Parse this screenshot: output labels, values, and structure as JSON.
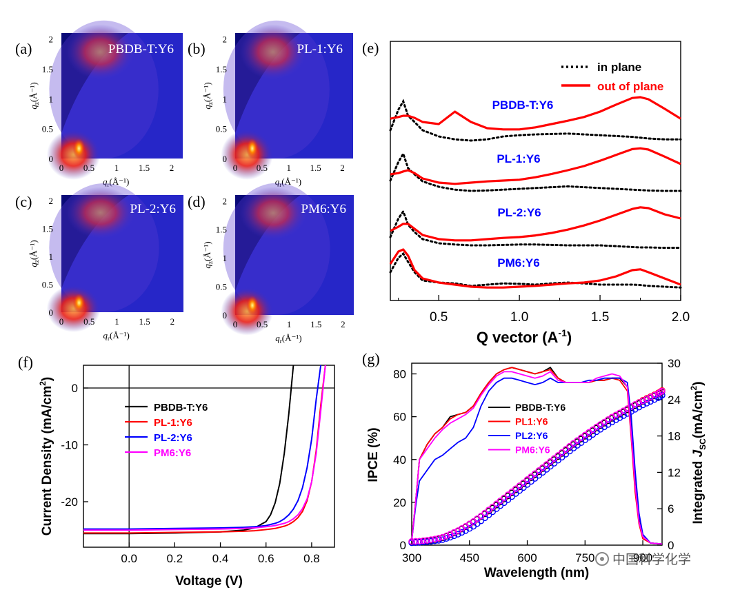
{
  "colors": {
    "pbdb": "#000000",
    "pl1": "#ff0000",
    "pl2": "#0000ff",
    "pm6": "#ff00ff",
    "red_line": "#ff0000",
    "label_blue": "#0000ff",
    "gi_bg": "#2626c8",
    "gi_shadow": "#0a0a78"
  },
  "watermark": "中国科学化学",
  "chart_data": [
    {
      "id": "a",
      "type": "heatmap",
      "panel_label": "(a)",
      "title": "PBDB-T:Y6",
      "xlabel_q": "q",
      "xlabel_sub": "r",
      "xlabel_unit": "(Å⁻¹)",
      "ylabel_q": "q",
      "ylabel_sub": "z",
      "ylabel_unit": "(Å⁻¹)",
      "xlim": [
        0,
        2.2
      ],
      "ylim": [
        0,
        2.1
      ],
      "xticks": [
        "0",
        "0.5",
        "1",
        "1.5",
        "2"
      ],
      "yticks": [
        "0",
        "0.5",
        "1",
        "1.5",
        "2"
      ]
    },
    {
      "id": "b",
      "type": "heatmap",
      "panel_label": "(b)",
      "title": "PL-1:Y6",
      "xlabel_q": "q",
      "xlabel_sub": "r",
      "xlabel_unit": "(Å⁻¹)",
      "ylabel_q": "q",
      "ylabel_sub": "z",
      "ylabel_unit": "(Å⁻¹)",
      "xlim": [
        0,
        2.2
      ],
      "ylim": [
        0,
        2.1
      ],
      "xticks": [
        "0",
        "0.5",
        "1",
        "1.5",
        "2"
      ],
      "yticks": [
        "0",
        "0.5",
        "1",
        "1.5",
        "2"
      ]
    },
    {
      "id": "c",
      "type": "heatmap",
      "panel_label": "(c)",
      "title": "PL-2:Y6",
      "xlabel_q": "q",
      "xlabel_sub": "r",
      "xlabel_unit": "(Å⁻¹)",
      "ylabel_q": "q",
      "ylabel_sub": "z",
      "ylabel_unit": "(Å⁻¹)",
      "xlim": [
        0,
        2.2
      ],
      "ylim": [
        0,
        2.1
      ],
      "xticks": [
        "0",
        "0.5",
        "1",
        "1.5",
        "2"
      ],
      "yticks": [
        "0",
        "0.5",
        "1",
        "1.5",
        "2"
      ]
    },
    {
      "id": "d",
      "type": "heatmap",
      "panel_label": "(d)",
      "title": "PM6:Y6",
      "xlabel_q": "q",
      "xlabel_sub": "r",
      "xlabel_unit": "(Å⁻¹)",
      "ylabel_q": "q",
      "ylabel_sub": "z",
      "ylabel_unit": "(Å⁻¹)",
      "xlim": [
        0,
        2.2
      ],
      "ylim": [
        0,
        2.1
      ],
      "xticks": [
        "0",
        "0.5",
        "1",
        "1.5",
        "2"
      ],
      "yticks": [
        "0",
        "0.5",
        "1",
        "1.5",
        "2"
      ]
    },
    {
      "id": "e",
      "type": "line",
      "panel_label": "(e)",
      "xlabel": "Q vector (A",
      "xlabel_sup": "-1",
      "xlabel_close": ")",
      "xlim": [
        0.2,
        2.0
      ],
      "xticks": [
        "0.5",
        "1.0",
        "1.5",
        "2.0"
      ],
      "xtick_values": [
        0.5,
        1.0,
        1.5,
        2.0
      ],
      "legend": [
        "in plane",
        "out of plane"
      ],
      "sample_labels": [
        "PBDB-T:Y6",
        "PL-1:Y6",
        "PL-2:Y6",
        "PM6:Y6"
      ],
      "x": [
        0.2,
        0.25,
        0.28,
        0.31,
        0.35,
        0.4,
        0.5,
        0.6,
        0.7,
        0.8,
        0.9,
        1.0,
        1.1,
        1.2,
        1.3,
        1.4,
        1.5,
        1.6,
        1.7,
        1.75,
        1.8,
        1.9,
        2.0
      ],
      "curves": [
        {
          "sample": "PBDB-T:Y6",
          "in_plane": [
            0.1,
            0.6,
            0.8,
            0.45,
            0.3,
            0.1,
            -0.05,
            -0.12,
            -0.15,
            -0.12,
            -0.05,
            -0.02,
            0.0,
            0.01,
            0.02,
            0.0,
            -0.02,
            -0.04,
            -0.06,
            -0.08,
            -0.1,
            -0.12,
            -0.12
          ],
          "out_of_plane": [
            0.38,
            0.42,
            0.45,
            0.45,
            0.4,
            0.3,
            0.25,
            0.55,
            0.3,
            0.15,
            0.12,
            0.12,
            0.17,
            0.25,
            0.33,
            0.42,
            0.55,
            0.72,
            0.88,
            0.9,
            0.85,
            0.62,
            0.38
          ]
        },
        {
          "sample": "PL-1:Y6",
          "in_plane": [
            0.1,
            0.55,
            0.75,
            0.4,
            0.25,
            0.08,
            -0.05,
            -0.12,
            -0.15,
            -0.14,
            -0.12,
            -0.1,
            -0.08,
            -0.06,
            -0.04,
            -0.06,
            -0.08,
            -0.1,
            -0.12,
            -0.13,
            -0.14,
            -0.15,
            -0.15
          ],
          "out_of_plane": [
            0.25,
            0.28,
            0.32,
            0.35,
            0.28,
            0.15,
            0.05,
            0.02,
            0.05,
            0.08,
            0.1,
            0.12,
            0.18,
            0.26,
            0.35,
            0.45,
            0.58,
            0.72,
            0.86,
            0.88,
            0.85,
            0.68,
            0.5
          ]
        },
        {
          "sample": "PL-2:Y6",
          "in_plane": [
            0.1,
            0.55,
            0.72,
            0.4,
            0.22,
            0.05,
            -0.05,
            -0.08,
            -0.1,
            -0.1,
            -0.09,
            -0.08,
            -0.08,
            -0.09,
            -0.1,
            -0.1,
            -0.1,
            -0.12,
            -0.14,
            -0.15,
            -0.15,
            -0.16,
            -0.16
          ],
          "out_of_plane": [
            0.25,
            0.35,
            0.42,
            0.42,
            0.3,
            0.15,
            0.05,
            0.02,
            0.02,
            0.05,
            0.08,
            0.1,
            0.14,
            0.2,
            0.28,
            0.38,
            0.5,
            0.64,
            0.78,
            0.82,
            0.8,
            0.65,
            0.55
          ]
        },
        {
          "sample": "PM6:Y6",
          "in_plane": [
            0.25,
            0.6,
            0.7,
            0.5,
            0.25,
            0.05,
            0.0,
            -0.02,
            -0.08,
            -0.05,
            -0.02,
            -0.03,
            -0.05,
            -0.02,
            0.0,
            -0.02,
            -0.05,
            -0.05,
            -0.05,
            -0.06,
            -0.08,
            -0.1,
            -0.12
          ],
          "out_of_plane": [
            0.45,
            0.75,
            0.8,
            0.65,
            0.3,
            0.1,
            0.0,
            -0.05,
            -0.1,
            -0.12,
            -0.12,
            -0.1,
            -0.08,
            -0.05,
            -0.02,
            0.0,
            0.05,
            0.15,
            0.3,
            0.32,
            0.25,
            0.1,
            -0.05
          ]
        }
      ]
    },
    {
      "id": "f",
      "type": "line",
      "panel_label": "(f)",
      "xlabel": "Voltage (V)",
      "ylabel": "Current Density (mA/cm",
      "ylabel_sup": "2",
      "ylabel_close": ")",
      "xlim": [
        -0.2,
        0.9
      ],
      "ylim": [
        -28,
        4
      ],
      "xticks": [
        "0.0",
        "0.2",
        "0.4",
        "0.6",
        "0.8"
      ],
      "xtick_values": [
        0.0,
        0.2,
        0.4,
        0.6,
        0.8
      ],
      "yticks": [
        "0",
        "-10",
        "-20"
      ],
      "ytick_values": [
        0,
        -10,
        -20
      ],
      "x": [
        -0.2,
        0.0,
        0.2,
        0.4,
        0.5,
        0.55,
        0.6,
        0.62,
        0.64,
        0.66,
        0.68,
        0.7,
        0.72,
        0.74,
        0.76,
        0.78,
        0.8,
        0.82,
        0.84,
        0.86,
        0.88
      ],
      "series": [
        {
          "name": "PBDB-T:Y6",
          "color": "#000000",
          "values": [
            -25.6,
            -25.6,
            -25.5,
            -25.3,
            -25.0,
            -24.6,
            -23.5,
            -22.3,
            -20.2,
            -16.8,
            -11.5,
            -4.5,
            4.5,
            null,
            null,
            null,
            null,
            null,
            null,
            null,
            null
          ]
        },
        {
          "name": "PL-1:Y6",
          "color": "#ff0000",
          "values": [
            -25.5,
            -25.5,
            -25.4,
            -25.3,
            -25.2,
            -25.1,
            -24.9,
            -24.8,
            -24.7,
            -24.5,
            -24.3,
            -24.0,
            -23.5,
            -22.8,
            -21.7,
            -19.8,
            -16.5,
            -11.0,
            -3.0,
            5.0,
            null
          ]
        },
        {
          "name": "PL-2:Y6",
          "color": "#0000ff",
          "values": [
            -24.8,
            -24.8,
            -24.7,
            -24.6,
            -24.5,
            -24.4,
            -24.2,
            -24.0,
            -23.8,
            -23.5,
            -23.0,
            -22.3,
            -21.3,
            -19.8,
            -17.5,
            -14.0,
            -9.0,
            -2.0,
            5.0,
            null,
            null
          ]
        },
        {
          "name": "PM6:Y6",
          "color": "#ff00ff",
          "values": [
            -25.0,
            -25.0,
            -24.9,
            -24.8,
            -24.7,
            -24.6,
            -24.4,
            -24.3,
            -24.2,
            -24.0,
            -23.8,
            -23.5,
            -23.0,
            -22.3,
            -21.2,
            -19.5,
            -16.5,
            -11.5,
            -4.0,
            5.0,
            null
          ]
        }
      ]
    },
    {
      "id": "g",
      "type": "line",
      "panel_label": "(g)",
      "xlabel": "Wavelength (nm)",
      "ylabel": "IPCE (%)",
      "ylabel2_prefix": "Integrated ",
      "ylabel2_j": "J",
      "ylabel2_sub": "SC",
      "ylabel2_unit": "(mA/cm",
      "ylabel2_sup": "2",
      "ylabel2_close": ")",
      "xlim": [
        300,
        950
      ],
      "ylim": [
        0,
        85
      ],
      "ylim_right": [
        0,
        30
      ],
      "xticks": [
        "300",
        "450",
        "600",
        "750",
        "900"
      ],
      "xtick_values": [
        300,
        450,
        600,
        750,
        900
      ],
      "yticks": [
        "0",
        "20",
        "40",
        "60",
        "80"
      ],
      "ytick_values": [
        0,
        20,
        40,
        60,
        80
      ],
      "yticks_right": [
        "0",
        "6",
        "12",
        "18",
        "24",
        "30"
      ],
      "ytick_values_right": [
        0,
        6,
        12,
        18,
        24,
        30
      ],
      "x": [
        300,
        310,
        320,
        340,
        360,
        380,
        400,
        420,
        440,
        460,
        480,
        500,
        520,
        540,
        560,
        580,
        600,
        620,
        640,
        660,
        680,
        700,
        720,
        740,
        760,
        780,
        800,
        820,
        840,
        860,
        870,
        880,
        890,
        900,
        920,
        950
      ],
      "series": [
        {
          "name": "PBDB-T:Y6",
          "color": "#000000",
          "ipce": [
            2,
            20,
            40,
            47,
            52,
            55,
            60,
            61,
            62,
            65,
            71,
            76,
            80,
            82,
            83,
            82,
            81,
            80,
            81,
            83,
            78,
            76,
            76,
            76,
            76,
            77,
            77,
            78,
            78,
            74,
            55,
            30,
            12,
            4,
            1,
            0.5
          ]
        },
        {
          "name": "PL1:Y6",
          "color": "#ff0000",
          "ipce": [
            2,
            20,
            40,
            47,
            52,
            55,
            59,
            61,
            62,
            65,
            71,
            76,
            80,
            82,
            83,
            82,
            81,
            80,
            81,
            82,
            78,
            76,
            76,
            76,
            76,
            77,
            77,
            78,
            77,
            72,
            50,
            25,
            10,
            3,
            1,
            0.5
          ]
        },
        {
          "name": "PL2:Y6",
          "color": "#0000ff",
          "ipce": [
            2,
            18,
            30,
            35,
            40,
            42,
            45,
            48,
            50,
            55,
            65,
            72,
            76,
            78,
            78,
            77,
            76,
            75,
            76,
            78,
            76,
            76,
            76,
            76,
            77,
            77,
            78,
            78,
            78,
            76,
            60,
            35,
            15,
            5,
            1,
            0.5
          ]
        },
        {
          "name": "PM6:Y6",
          "color": "#ff00ff",
          "ipce": [
            2,
            20,
            40,
            45,
            50,
            54,
            57,
            59,
            61,
            64,
            70,
            75,
            79,
            81,
            81,
            80,
            79,
            78,
            79,
            81,
            77,
            76,
            76,
            76,
            76,
            78,
            79,
            80,
            79,
            74,
            52,
            28,
            11,
            4,
            1,
            0.5
          ]
        }
      ],
      "jsc_x": [
        300,
        320,
        340,
        360,
        380,
        400,
        420,
        440,
        460,
        480,
        500,
        520,
        540,
        560,
        580,
        600,
        620,
        640,
        660,
        680,
        700,
        720,
        740,
        760,
        780,
        800,
        820,
        840,
        860,
        880,
        900,
        920,
        940,
        950
      ],
      "jsc": [
        {
          "name": "PBDB-T:Y6",
          "color": "#000000",
          "values": [
            0.5,
            0.55,
            0.7,
            0.9,
            1.2,
            1.7,
            2.3,
            3.0,
            3.8,
            4.7,
            5.6,
            6.6,
            7.6,
            8.6,
            9.6,
            10.6,
            11.6,
            12.6,
            13.6,
            14.6,
            15.6,
            16.6,
            17.5,
            18.4,
            19.3,
            20.1,
            20.9,
            21.6,
            22.3,
            23.0,
            23.7,
            24.3,
            24.9,
            25.3
          ]
        },
        {
          "name": "PL1:Y6",
          "color": "#ff0000",
          "values": [
            0.6,
            0.65,
            0.8,
            1.0,
            1.3,
            1.8,
            2.4,
            3.1,
            3.9,
            4.8,
            5.8,
            6.8,
            7.8,
            8.8,
            9.8,
            10.8,
            11.8,
            12.8,
            13.8,
            14.8,
            15.8,
            16.8,
            17.7,
            18.6,
            19.5,
            20.3,
            21.1,
            21.8,
            22.5,
            23.2,
            23.9,
            24.5,
            25.1,
            25.5
          ]
        },
        {
          "name": "PL2:Y6",
          "color": "#0000ff",
          "values": [
            0.4,
            0.45,
            0.55,
            0.7,
            0.9,
            1.3,
            1.8,
            2.4,
            3.1,
            4.0,
            5.0,
            6.0,
            7.0,
            8.0,
            9.0,
            10.0,
            11.0,
            12.0,
            13.0,
            14.0,
            15.0,
            16.0,
            16.9,
            17.8,
            18.7,
            19.5,
            20.3,
            21.0,
            21.7,
            22.4,
            23.1,
            23.7,
            24.3,
            24.7
          ]
        },
        {
          "name": "PM6:Y6",
          "color": "#ff00ff",
          "values": [
            0.6,
            0.65,
            0.8,
            1.0,
            1.3,
            1.8,
            2.4,
            3.1,
            3.9,
            4.8,
            5.8,
            6.8,
            7.8,
            8.8,
            9.8,
            10.8,
            11.8,
            12.8,
            13.8,
            14.8,
            15.8,
            16.8,
            17.7,
            18.6,
            19.5,
            20.3,
            21.1,
            21.8,
            22.5,
            23.2,
            23.8,
            24.4,
            25.0,
            25.4
          ]
        }
      ]
    }
  ]
}
